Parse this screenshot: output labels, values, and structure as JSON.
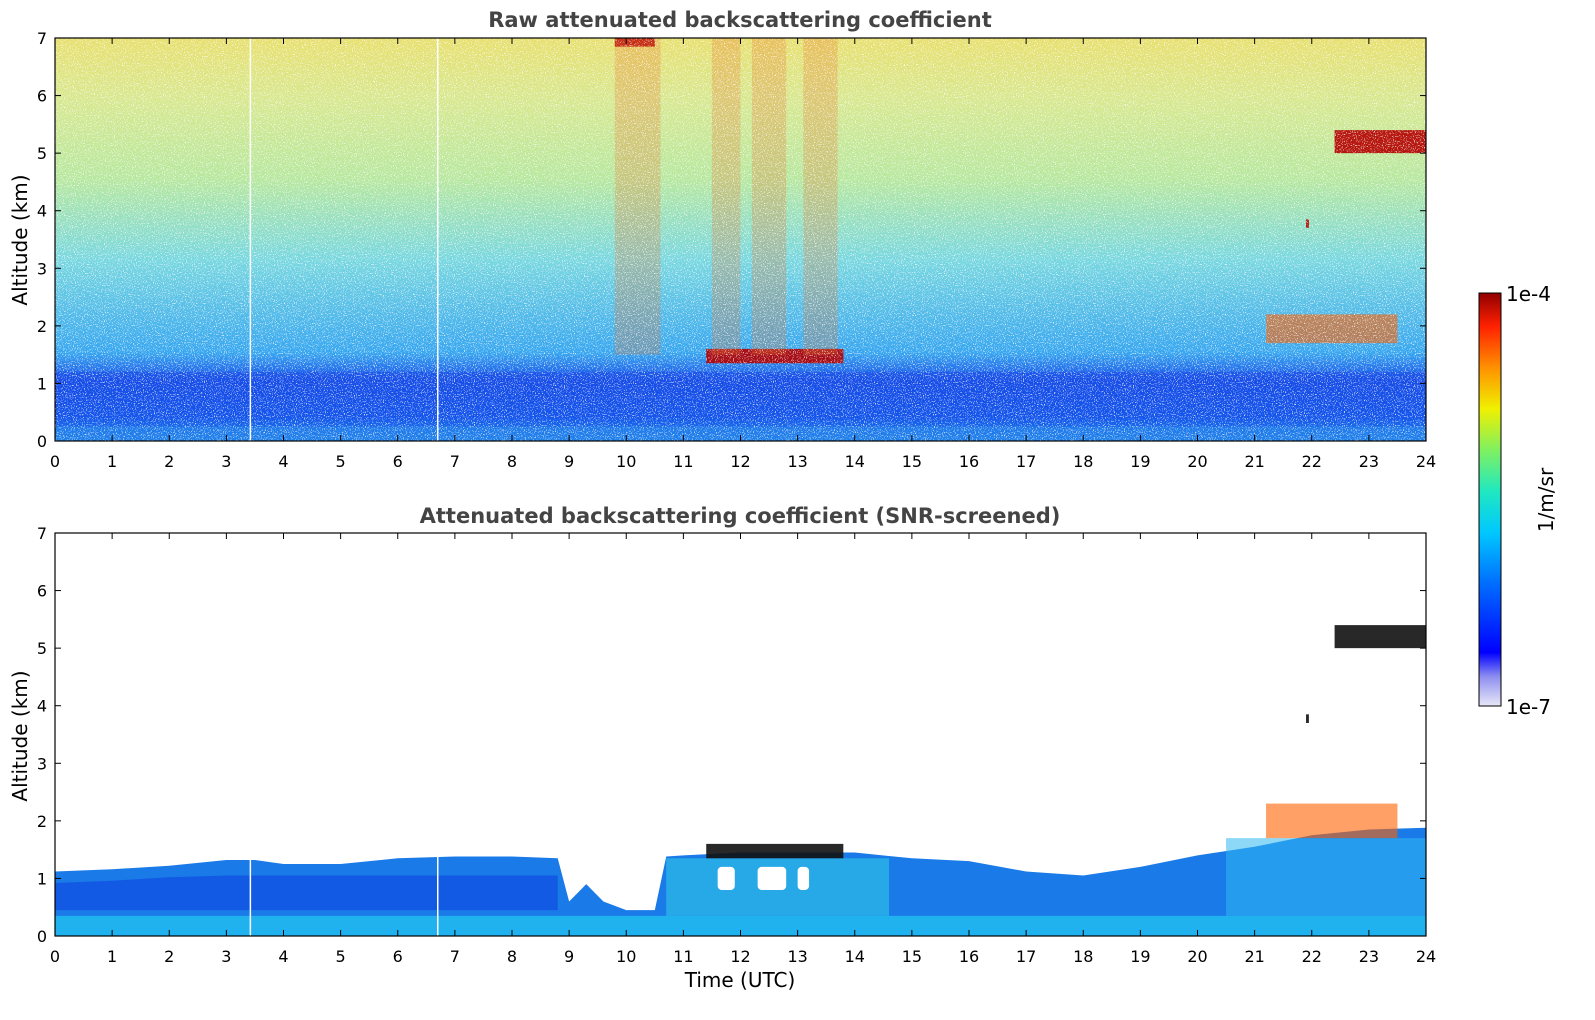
{
  "chart_data": [
    {
      "type": "heatmap",
      "title": "Raw attenuated backscattering coefficient",
      "xlabel": "",
      "ylabel": "Altitude (km)",
      "xlim": [
        0,
        24
      ],
      "ylim": [
        0,
        7
      ],
      "xticks": [
        0,
        1,
        2,
        3,
        4,
        5,
        6,
        7,
        8,
        9,
        10,
        11,
        12,
        13,
        14,
        15,
        16,
        17,
        18,
        19,
        20,
        21,
        22,
        23,
        24
      ],
      "yticks": [
        0,
        1,
        2,
        3,
        4,
        5,
        6,
        7
      ],
      "gaps_x": [
        3.42,
        6.7
      ],
      "boundary_layer_top_km": 1.2,
      "features": [
        {
          "kind": "cloud",
          "x": [
            11.4,
            13.8
          ],
          "y": [
            1.35,
            1.6
          ]
        },
        {
          "kind": "cloud",
          "x": [
            9.8,
            10.5
          ],
          "y": [
            6.85,
            7.0
          ]
        },
        {
          "kind": "cloud",
          "x": [
            22.4,
            24.0
          ],
          "y": [
            5.0,
            5.4
          ]
        },
        {
          "kind": "cloud",
          "x": [
            21.9,
            21.95
          ],
          "y": [
            3.7,
            3.85
          ]
        },
        {
          "kind": "aerosol",
          "x": [
            21.2,
            23.5
          ],
          "y": [
            1.7,
            2.2
          ]
        }
      ],
      "grid": false
    },
    {
      "type": "heatmap",
      "title": "Attenuated backscattering coefficient (SNR-screened)",
      "xlabel": "Time (UTC)",
      "ylabel": "Altitude (km)",
      "xlim": [
        0,
        24
      ],
      "ylim": [
        0,
        7
      ],
      "xticks": [
        0,
        1,
        2,
        3,
        4,
        5,
        6,
        7,
        8,
        9,
        10,
        11,
        12,
        13,
        14,
        15,
        16,
        17,
        18,
        19,
        20,
        21,
        22,
        23,
        24
      ],
      "yticks": [
        0,
        1,
        2,
        3,
        4,
        5,
        6,
        7
      ],
      "gaps_x": [
        3.42,
        6.7
      ],
      "layer_top_profile": [
        [
          0,
          1.12
        ],
        [
          1,
          1.16
        ],
        [
          2,
          1.22
        ],
        [
          3,
          1.32
        ],
        [
          3.5,
          1.32
        ],
        [
          4,
          1.25
        ],
        [
          5,
          1.25
        ],
        [
          6,
          1.35
        ],
        [
          7,
          1.38
        ],
        [
          8,
          1.38
        ],
        [
          8.8,
          1.35
        ],
        [
          9,
          0.6
        ],
        [
          9.3,
          0.9
        ],
        [
          9.6,
          0.6
        ],
        [
          10,
          0.45
        ],
        [
          10.5,
          0.45
        ],
        [
          10.7,
          1.38
        ],
        [
          11,
          1.4
        ],
        [
          12,
          1.45
        ],
        [
          13,
          1.45
        ],
        [
          14,
          1.45
        ],
        [
          15,
          1.35
        ],
        [
          16,
          1.3
        ],
        [
          17,
          1.12
        ],
        [
          18,
          1.05
        ],
        [
          19,
          1.2
        ],
        [
          20,
          1.4
        ],
        [
          21,
          1.55
        ],
        [
          22,
          1.75
        ],
        [
          23,
          1.85
        ],
        [
          24,
          1.88
        ]
      ],
      "features": [
        {
          "kind": "cloud",
          "x": [
            11.4,
            13.8
          ],
          "y": [
            1.35,
            1.6
          ]
        },
        {
          "kind": "cloud",
          "x": [
            22.4,
            24.0
          ],
          "y": [
            5.0,
            5.4
          ]
        },
        {
          "kind": "cloud",
          "x": [
            21.9,
            21.95
          ],
          "y": [
            3.7,
            3.85
          ]
        },
        {
          "kind": "aerosol",
          "x": [
            21.2,
            23.5
          ],
          "y": [
            1.7,
            2.3
          ]
        }
      ],
      "grid": false
    }
  ],
  "colorbar": {
    "label": "1/m/sr",
    "max_label": "1e-4",
    "min_label": "1e-7",
    "scale": "log",
    "range": [
      1e-07,
      0.0001
    ],
    "colormap": "jet",
    "colors": [
      "#e8e8f8",
      "#c8c8f0",
      "#9090f0",
      "#0000ff",
      "#0040ff",
      "#0080ff",
      "#00b0ff",
      "#00e0e0",
      "#20f0a0",
      "#80f060",
      "#c0f040",
      "#f0f000",
      "#ffc000",
      "#ff8000",
      "#ff3000",
      "#e00000",
      "#900000"
    ]
  }
}
